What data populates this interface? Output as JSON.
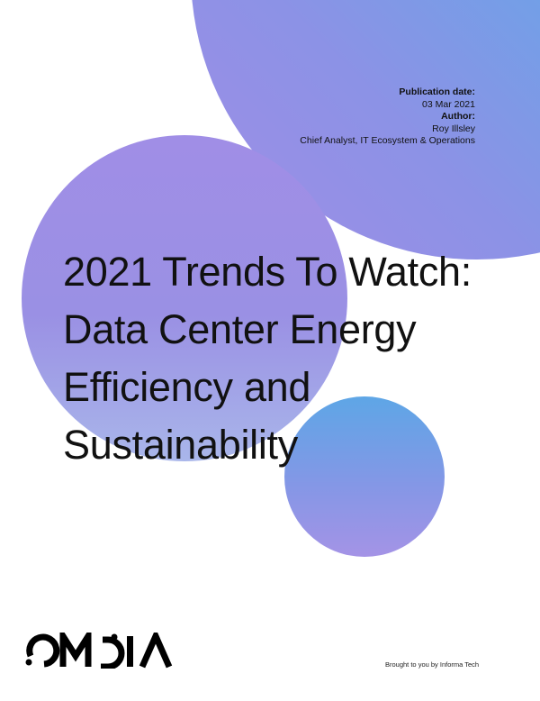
{
  "meta": {
    "publication_date_label": "Publication date:",
    "publication_date": "03 Mar 2021",
    "author_label": "Author:",
    "author_name": "Roy Illsley",
    "author_title": "Chief Analyst, IT Ecosystem & Operations"
  },
  "title_lines": [
    "2021 Trends To Watch:",
    "Data Center Energy",
    "Efficiency and",
    "Sustainability"
  ],
  "footer": {
    "logo_text": "OMDIA",
    "brought_by": "Brought to you by Informa Tech"
  },
  "colors": {
    "purple": "#9b8ee6",
    "blue": "#56aee8",
    "text": "#111111"
  }
}
